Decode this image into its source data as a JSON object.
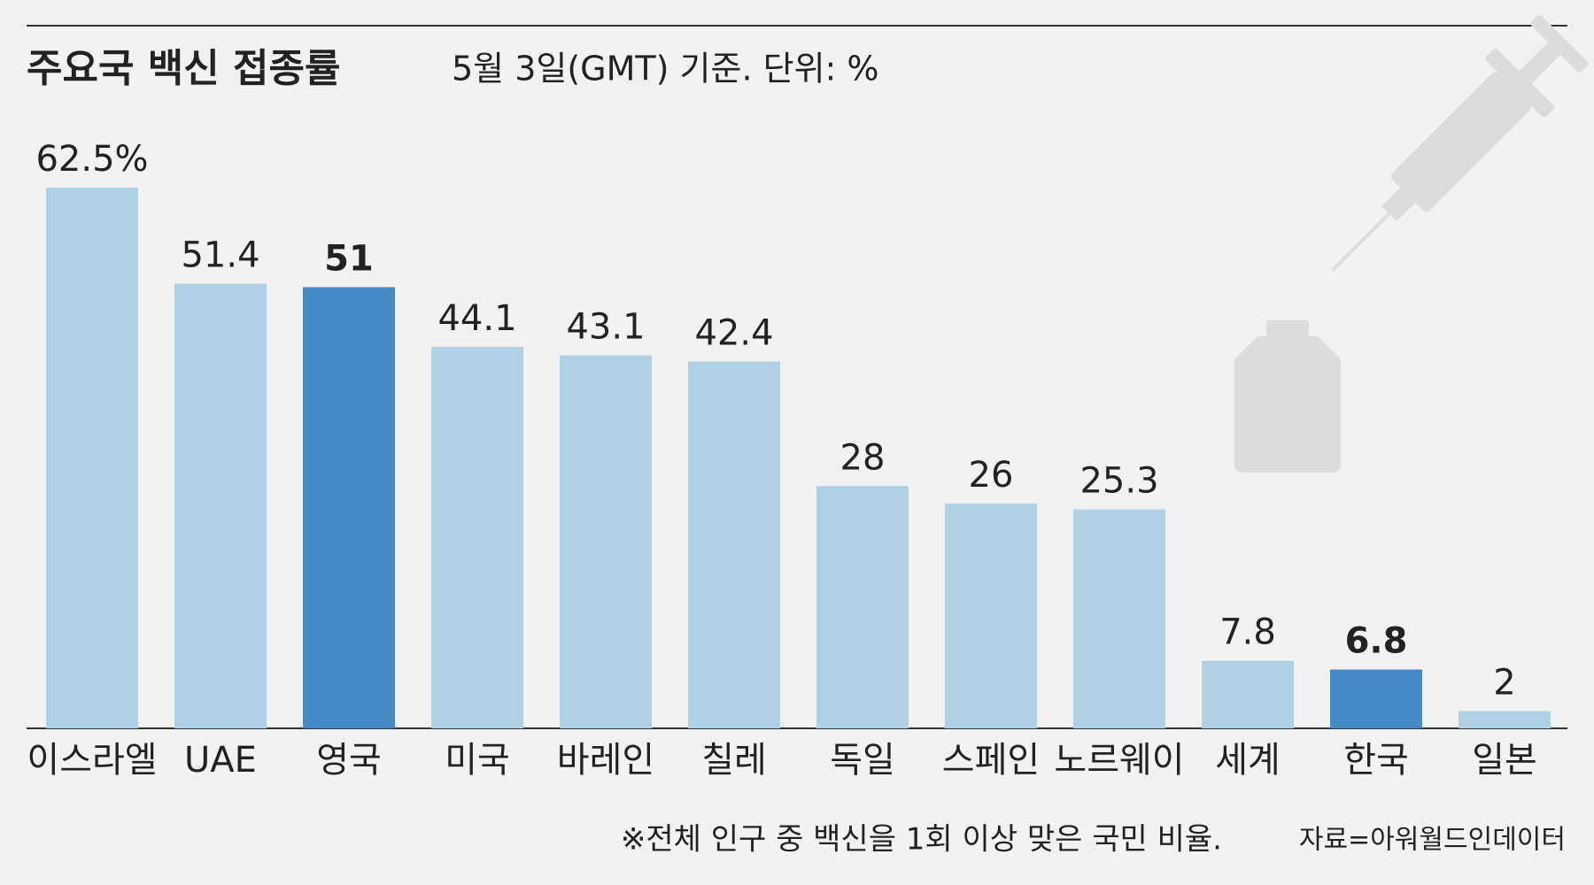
{
  "chart_data": {
    "type": "bar",
    "title": "주요국 백신 접종률",
    "subtitle": "5월 3일(GMT) 기준. 단위: %",
    "categories": [
      "이스라엘",
      "UAE",
      "영국",
      "미국",
      "바레인",
      "칠레",
      "독일",
      "스페인",
      "노르웨이",
      "세계",
      "한국",
      "일본"
    ],
    "values": [
      62.5,
      51.4,
      51,
      44.1,
      43.1,
      42.4,
      28,
      26,
      25.3,
      7.8,
      6.8,
      2
    ],
    "value_labels": [
      "62.5%",
      "51.4",
      "51",
      "44.1",
      "43.1",
      "42.4",
      "28",
      "26",
      "25.3",
      "7.8",
      "6.8",
      "2"
    ],
    "color": "#b0d0e4",
    "colors": [
      "#b0d0e4",
      "#b0d0e4",
      "#458ac6",
      "#b0d0e4",
      "#b0d0e4",
      "#b0d0e4",
      "#b0d0e4",
      "#b0d0e4",
      "#b0d0e4",
      "#b0d0e4",
      "#458ac6",
      "#b0d0e4"
    ],
    "note": "※전체 인구 중 백신을 1회 이상 맞은 국민 비율.",
    "source": "자료=아워월드인데이터"
  }
}
